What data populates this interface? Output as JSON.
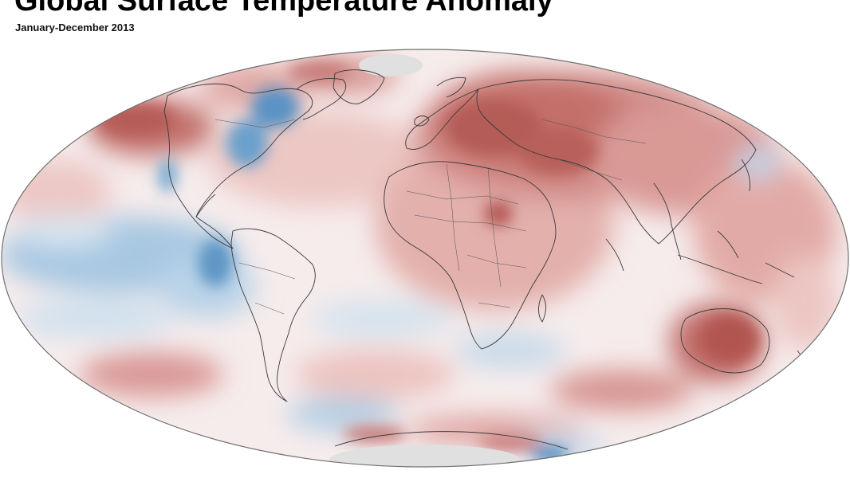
{
  "header": {
    "title": "Global Surface Temperature Anomaly",
    "subtitle": "January-December 2013"
  },
  "map": {
    "projection": "mollweide",
    "center": "0°",
    "colors": {
      "warm": "#b5514f",
      "warm_light": "#e8b9b5",
      "neutral": "#f7eeee",
      "cool": "#4a8cc0",
      "cool_light": "#b8d4e8",
      "no_data": "#e0e0e0",
      "outline": "#707070",
      "coast": "#3a3a3a"
    }
  }
}
